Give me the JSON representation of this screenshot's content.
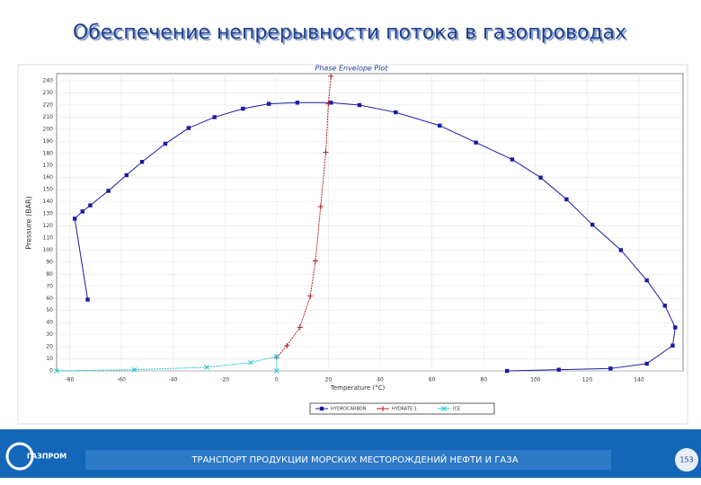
{
  "slide": {
    "title": "Обеспечение непрерывности потока в газопроводах",
    "footer": "ТРАНСПОРТ ПРОДУКЦИИ МОРСКИХ МЕСТОРОЖДЕНИЙ НЕФТИ И ГАЗА",
    "page": "153",
    "brand": "ГАЗПРОМ"
  },
  "chart_data": {
    "type": "line",
    "title": "Phase Envelope Plot",
    "x_label": "Temperature (°C)",
    "y_label": "Pressure (BAR)",
    "xlim": [
      -85,
      157
    ],
    "xticks": [
      -80,
      -60,
      -40,
      -20,
      0,
      20,
      40,
      60,
      80,
      100,
      120,
      140
    ],
    "ylim": [
      0,
      246
    ],
    "yticks": [
      0,
      10,
      20,
      30,
      40,
      50,
      60,
      70,
      80,
      90,
      100,
      110,
      120,
      130,
      140,
      150,
      160,
      170,
      180,
      190,
      200,
      210,
      220,
      230,
      240
    ],
    "grid": true,
    "legend": "bottom",
    "series": [
      {
        "name": "HYDROCARBON",
        "color": "#1a1aa6",
        "marker": "square",
        "x": [
          -73,
          -78,
          -75,
          -72,
          -65,
          -58,
          -52,
          -43,
          -34,
          -24,
          -13,
          -3,
          8,
          21,
          32,
          46,
          63,
          77,
          91,
          102,
          112,
          122,
          133,
          143,
          150,
          154,
          153,
          143,
          129,
          109,
          89
        ],
        "values": [
          59,
          126,
          132,
          137,
          149,
          162,
          173,
          188,
          201,
          210,
          217,
          221,
          222,
          222,
          220,
          214,
          203,
          189,
          175,
          160,
          142,
          121,
          100,
          75,
          54,
          36,
          21,
          6,
          2,
          1,
          0
        ]
      },
      {
        "name": "HYDRATE 1",
        "color": "#b22222",
        "marker": "plus",
        "x": [
          0,
          4,
          9,
          13,
          15,
          17,
          19,
          20,
          21
        ],
        "values": [
          11,
          21,
          36,
          62,
          91,
          136,
          181,
          221,
          244
        ]
      },
      {
        "name": "ICE",
        "color": "#20c8d8",
        "marker": "x",
        "x": [
          -85,
          -55,
          -27,
          -10,
          0,
          0
        ],
        "values": [
          0,
          1,
          3,
          7,
          12,
          0
        ]
      }
    ]
  }
}
